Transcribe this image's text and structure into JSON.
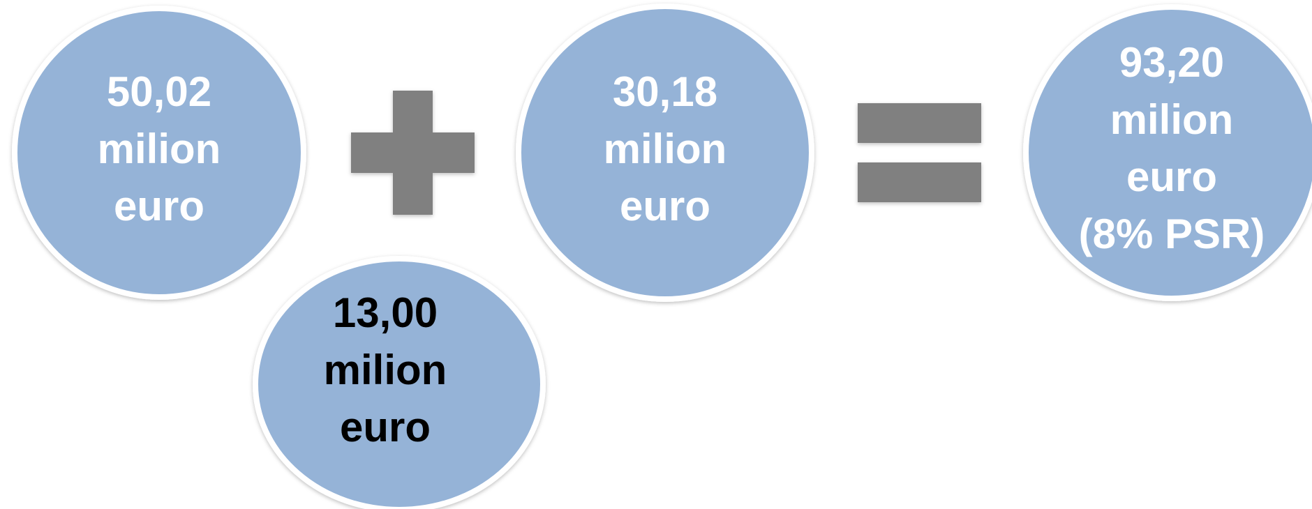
{
  "nodes": [
    {
      "lines": [
        "50,02",
        "milion",
        "euro"
      ]
    },
    {
      "lines": [
        "13,00",
        "milion",
        "euro"
      ]
    },
    {
      "lines": [
        "30,18",
        "milion",
        "euro"
      ]
    },
    {
      "lines": [
        "93,20",
        "milion",
        "euro",
        "(8% PSR)"
      ]
    }
  ]
}
